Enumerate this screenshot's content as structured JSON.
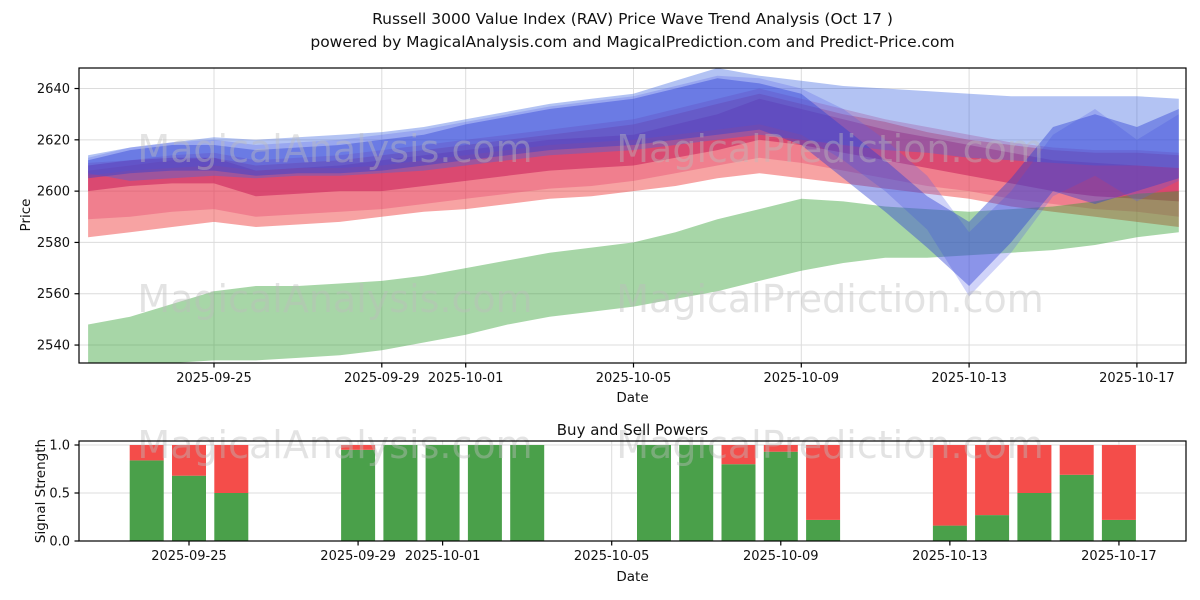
{
  "title_line1": "Russell 3000 Value Index (RAV) Price Wave Trend Analysis (Oct 17 )",
  "title_line2": "powered by MagicalAnalysis.com and MagicalPrediction.com and Predict-Price.com",
  "watermark": {
    "left_text": "MagicalAnalysis.com",
    "right_text": "MagicalPrediction.com"
  },
  "chart_data": [
    {
      "type": "area",
      "title": "",
      "xlabel": "Date",
      "ylabel": "Price",
      "ylim": [
        2533,
        2648
      ],
      "yticks": [
        2540,
        2560,
        2580,
        2600,
        2620,
        2640
      ],
      "xticks": [
        {
          "day": 3,
          "label": "2025-09-25"
        },
        {
          "day": 7,
          "label": "2025-09-29"
        },
        {
          "day": 9,
          "label": "2025-10-01"
        },
        {
          "day": 13,
          "label": "2025-10-05"
        },
        {
          "day": 17,
          "label": "2025-10-09"
        },
        {
          "day": 21,
          "label": "2025-10-13"
        },
        {
          "day": 25,
          "label": "2025-10-17"
        }
      ],
      "x_start_date": "2025-09-22",
      "x_end_date": "2025-10-18",
      "grid": true,
      "bands": [
        {
          "name": "salmon-wave",
          "color": "#ee3333",
          "opacity": 0.45,
          "lower": [
            2582,
            2584,
            2586,
            2588,
            2586,
            2587,
            2588,
            2590,
            2592,
            2593,
            2595,
            2597,
            2598,
            2600,
            2602,
            2605,
            2607,
            2605,
            2603,
            2601,
            2599,
            2597,
            2594,
            2592,
            2590,
            2588,
            2586
          ],
          "upper": [
            2608,
            2610,
            2612,
            2613,
            2610,
            2611,
            2612,
            2614,
            2616,
            2618,
            2620,
            2622,
            2624,
            2626,
            2630,
            2634,
            2638,
            2634,
            2630,
            2627,
            2623,
            2620,
            2618,
            2616,
            2615,
            2615,
            2614
          ]
        },
        {
          "name": "crimson-echo",
          "color": "#e03060",
          "opacity": 0.3,
          "lower": [
            2589,
            2590,
            2592,
            2593,
            2590,
            2591,
            2592,
            2593,
            2595,
            2597,
            2599,
            2601,
            2602,
            2604,
            2607,
            2610,
            2613,
            2611,
            2608,
            2605,
            2602,
            2600,
            2597,
            2595,
            2593,
            2592,
            2590
          ],
          "upper": [
            2611,
            2612,
            2614,
            2615,
            2612,
            2613,
            2614,
            2616,
            2618,
            2620,
            2622,
            2624,
            2626,
            2628,
            2632,
            2636,
            2640,
            2636,
            2632,
            2628,
            2625,
            2622,
            2619,
            2617,
            2616,
            2616,
            2615
          ]
        },
        {
          "name": "crimson-core",
          "color": "#c81e5a",
          "opacity": 0.55,
          "lower": [
            2600,
            2602,
            2603,
            2603,
            2598,
            2599,
            2600,
            2600,
            2602,
            2604,
            2606,
            2608,
            2609,
            2610,
            2613,
            2616,
            2620,
            2618,
            2615,
            2612,
            2609,
            2606,
            2603,
            2600,
            2598,
            2597,
            2596
          ],
          "upper": [
            2610,
            2612,
            2613,
            2613,
            2608,
            2609,
            2610,
            2612,
            2614,
            2616,
            2618,
            2620,
            2621,
            2622,
            2626,
            2630,
            2636,
            2632,
            2628,
            2624,
            2621,
            2618,
            2615,
            2612,
            2611,
            2610,
            2609
          ]
        },
        {
          "name": "green-trend",
          "color": "#2e9e2e",
          "opacity": 0.42,
          "lower": [
            2533,
            2532,
            2533,
            2534,
            2534,
            2535,
            2536,
            2538,
            2541,
            2544,
            2548,
            2551,
            2553,
            2555,
            2558,
            2561,
            2565,
            2569,
            2572,
            2574,
            2574,
            2575,
            2576,
            2577,
            2579,
            2582,
            2584
          ],
          "upper": [
            2548,
            2551,
            2556,
            2561,
            2563,
            2563,
            2564,
            2565,
            2567,
            2570,
            2573,
            2576,
            2578,
            2580,
            2584,
            2589,
            2593,
            2597,
            2596,
            2594,
            2593,
            2592,
            2593,
            2594,
            2596,
            2599,
            2600
          ]
        },
        {
          "name": "lightblue-wave",
          "color": "#4169e1",
          "opacity": 0.4,
          "lower": [
            2607,
            2604,
            2605,
            2606,
            2605,
            2606,
            2606,
            2607,
            2608,
            2610,
            2612,
            2614,
            2615,
            2616,
            2618,
            2620,
            2622,
            2620,
            2618,
            2616,
            2615,
            2613,
            2612,
            2611,
            2610,
            2610,
            2609
          ],
          "upper": [
            2614,
            2617,
            2619,
            2621,
            2620,
            2621,
            2622,
            2623,
            2625,
            2628,
            2631,
            2634,
            2636,
            2638,
            2643,
            2648,
            2645,
            2643,
            2641,
            2640,
            2639,
            2638,
            2637,
            2637,
            2637,
            2637,
            2636
          ]
        },
        {
          "name": "blue-dive-echo",
          "color": "#5560e8",
          "opacity": 0.28,
          "lower": [
            2606,
            2608,
            2609,
            2610,
            2608,
            2609,
            2609,
            2610,
            2612,
            2614,
            2616,
            2618,
            2619,
            2620,
            2622,
            2624,
            2626,
            2622,
            2612,
            2600,
            2585,
            2559,
            2576,
            2598,
            2606,
            2596,
            2604
          ],
          "upper": [
            2613,
            2617,
            2619,
            2620,
            2618,
            2619,
            2620,
            2622,
            2624,
            2627,
            2630,
            2633,
            2635,
            2637,
            2641,
            2645,
            2644,
            2640,
            2632,
            2620,
            2606,
            2584,
            2600,
            2622,
            2632,
            2620,
            2630
          ]
        },
        {
          "name": "darkblue-core",
          "color": "#2a3fd4",
          "opacity": 0.42,
          "lower": [
            2605,
            2607,
            2608,
            2608,
            2606,
            2607,
            2607,
            2608,
            2610,
            2612,
            2614,
            2616,
            2617,
            2618,
            2620,
            2622,
            2624,
            2618,
            2605,
            2592,
            2578,
            2563,
            2580,
            2600,
            2595,
            2600,
            2605
          ],
          "upper": [
            2612,
            2616,
            2618,
            2618,
            2616,
            2617,
            2618,
            2620,
            2622,
            2626,
            2629,
            2632,
            2634,
            2636,
            2640,
            2644,
            2642,
            2638,
            2625,
            2612,
            2598,
            2588,
            2605,
            2625,
            2630,
            2625,
            2632
          ]
        }
      ]
    },
    {
      "type": "bar",
      "title": "Buy and Sell Powers",
      "xlabel": "Date",
      "ylabel": "Signal Strength",
      "ylim": [
        0,
        1.04
      ],
      "yticks": [
        {
          "v": 0.0,
          "label": "0.0"
        },
        {
          "v": 0.5,
          "label": "0.5"
        },
        {
          "v": 1.0,
          "label": "1.0"
        }
      ],
      "xticks": [
        {
          "day": 3,
          "label": "2025-09-25"
        },
        {
          "day": 7,
          "label": "2025-09-29"
        },
        {
          "day": 9,
          "label": "2025-10-01"
        },
        {
          "day": 13,
          "label": "2025-10-05"
        },
        {
          "day": 17,
          "label": "2025-10-09"
        },
        {
          "day": 21,
          "label": "2025-10-13"
        },
        {
          "day": 25,
          "label": "2025-10-17"
        }
      ],
      "series": [
        {
          "name": "Buy",
          "color": "#4aa04a"
        },
        {
          "name": "Sell",
          "color": "#f44d4a"
        }
      ],
      "bars": {
        "days": [
          2,
          3,
          4,
          7,
          8,
          9,
          10,
          11,
          14,
          15,
          16,
          17,
          18,
          21,
          22,
          23,
          24,
          25
        ],
        "dates": [
          "2025-09-24",
          "2025-09-25",
          "2025-09-26",
          "2025-09-29",
          "2025-09-30",
          "2025-10-01",
          "2025-10-02",
          "2025-10-03",
          "2025-10-06",
          "2025-10-07",
          "2025-10-08",
          "2025-10-09",
          "2025-10-10",
          "2025-10-13",
          "2025-10-14",
          "2025-10-15",
          "2025-10-16",
          "2025-10-17"
        ],
        "buy": [
          0.84,
          0.68,
          0.5,
          0.95,
          1.0,
          1.0,
          1.0,
          1.0,
          1.0,
          1.0,
          0.8,
          0.93,
          0.22,
          0.16,
          0.27,
          0.5,
          0.69,
          0.22
        ],
        "sell": [
          0.16,
          0.32,
          0.5,
          0.05,
          0.0,
          0.0,
          0.0,
          0.0,
          0.0,
          0.0,
          0.2,
          0.07,
          0.78,
          0.84,
          0.73,
          0.5,
          0.31,
          0.78
        ]
      }
    }
  ]
}
